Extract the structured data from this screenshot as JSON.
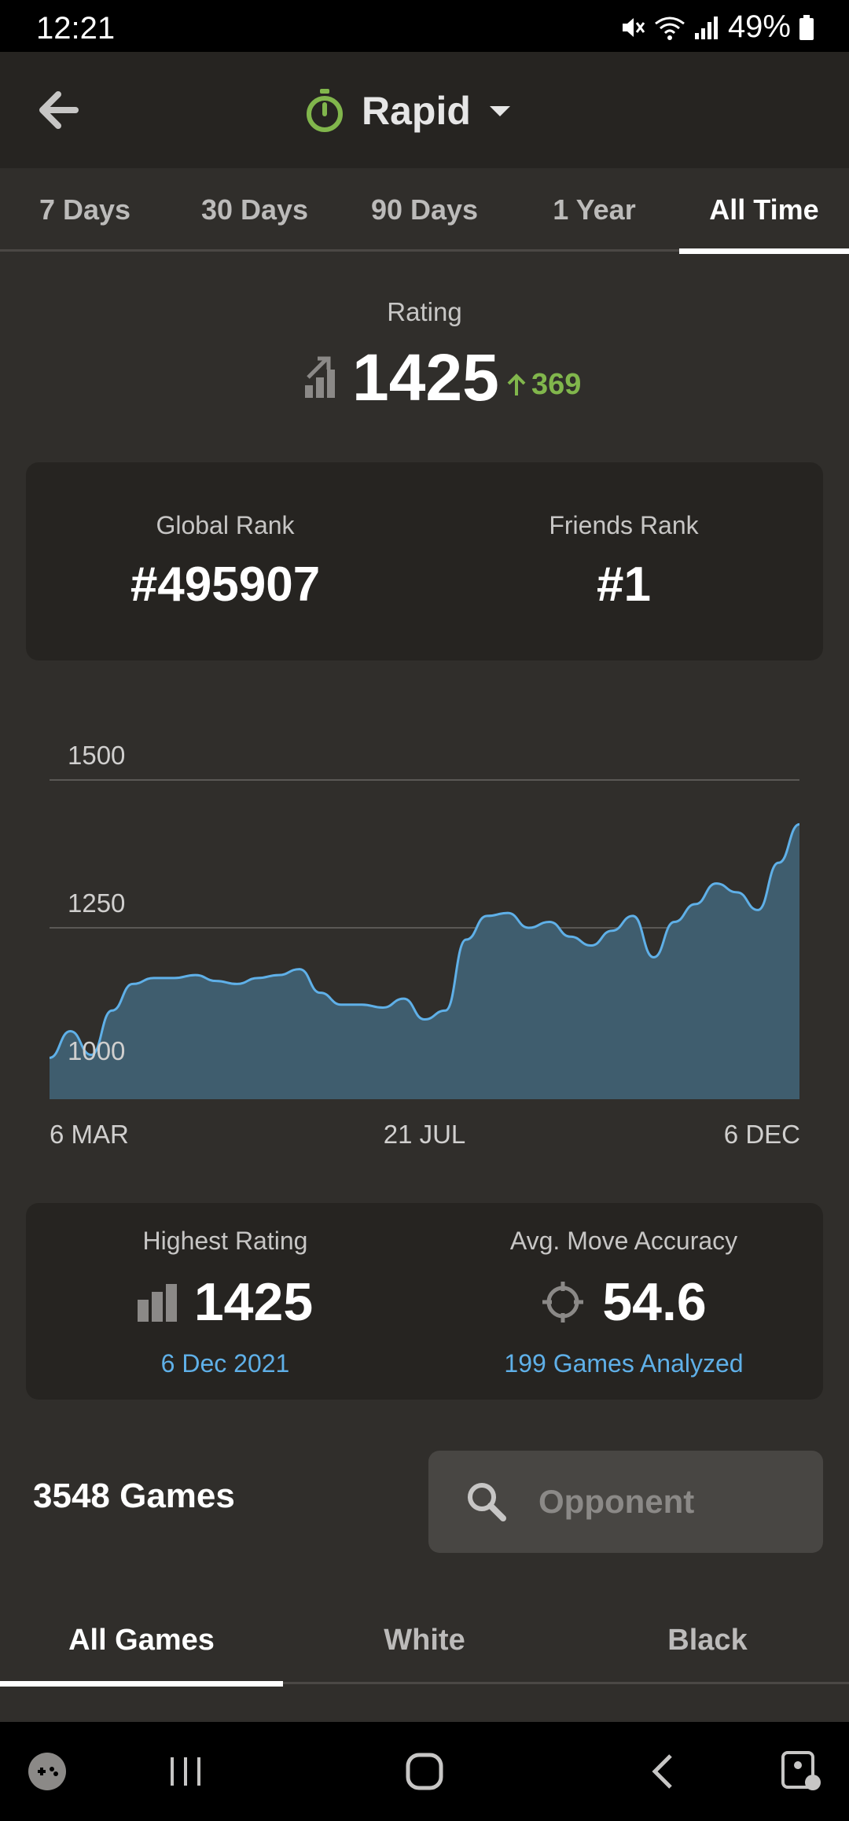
{
  "status_bar": {
    "time": "12:21",
    "battery": "49%"
  },
  "header": {
    "mode": "Rapid"
  },
  "period_tabs": [
    "7 Days",
    "30 Days",
    "90 Days",
    "1 Year",
    "All Time"
  ],
  "active_period": 4,
  "rating": {
    "label": "Rating",
    "value": "1425",
    "change": "369"
  },
  "ranks": {
    "global_label": "Global Rank",
    "global_value": "#495907",
    "friends_label": "Friends Rank",
    "friends_value": "#1"
  },
  "chart_data": {
    "type": "area",
    "y_ticks": [
      "1500",
      "1250",
      "1000"
    ],
    "x_ticks": [
      "6 MAR",
      "21 JUL",
      "6 DEC"
    ],
    "ylim": [
      960,
      1500
    ],
    "grid": true,
    "series": [
      {
        "color": "#5fb0e8",
        "values": [
          1030,
          1075,
          1035,
          1110,
          1155,
          1165,
          1165,
          1170,
          1160,
          1155,
          1165,
          1170,
          1180,
          1140,
          1120,
          1120,
          1115,
          1130,
          1095,
          1110,
          1230,
          1270,
          1275,
          1250,
          1260,
          1235,
          1220,
          1245,
          1270,
          1200,
          1260,
          1290,
          1325,
          1310,
          1280,
          1360,
          1425
        ]
      }
    ]
  },
  "summary": {
    "highest_label": "Highest Rating",
    "highest_value": "1425",
    "highest_date": "6 Dec 2021",
    "accuracy_label": "Avg. Move Accuracy",
    "accuracy_value": "54.6",
    "accuracy_games": "199 Games Analyzed"
  },
  "games": {
    "count": "3548 Games",
    "search_placeholder": "Opponent"
  },
  "color_tabs": [
    "All Games",
    "White",
    "Black"
  ],
  "active_color_tab": 0,
  "colors": {
    "accent_green": "#81b64c",
    "link_blue": "#5fb0e8",
    "chart_fill": "#3f5d6e"
  }
}
